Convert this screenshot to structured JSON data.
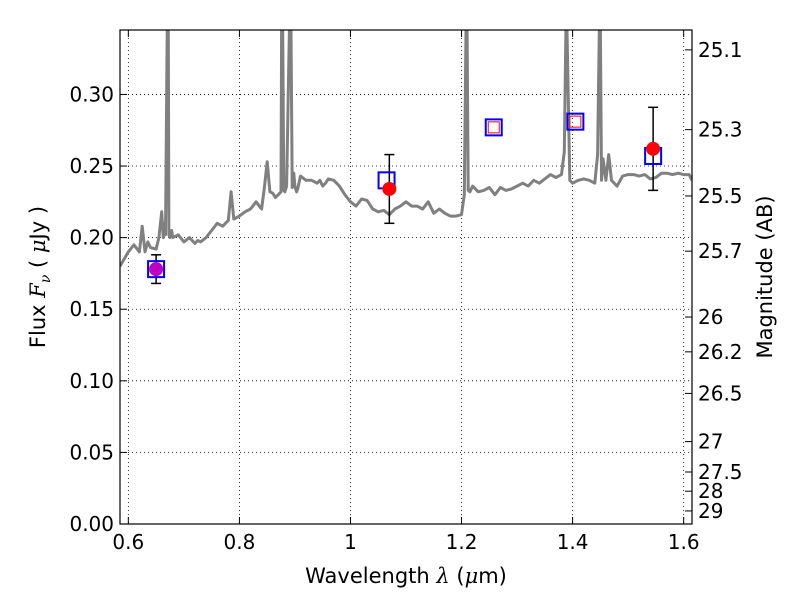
{
  "chart_data": {
    "type": "scatter",
    "xlabel": {
      "prefix": "Wavelength  ",
      "symbol": "λ",
      "unit_open": " (",
      "unit_mu": "μ",
      "unit_rest": "m)"
    },
    "ylabel": {
      "prefix": "Flux  ",
      "symbol": "F",
      "subscript": "ν",
      "unit_open": "  ( ",
      "unit_mu": "μ",
      "unit_rest": "Jy )"
    },
    "y2label": "Magnitude (AB)",
    "xlim": [
      0.585,
      1.615
    ],
    "ylim": [
      0.0,
      0.345
    ],
    "grid": true,
    "x_ticks": [
      {
        "value": 0.6,
        "label": "0.6"
      },
      {
        "value": 0.8,
        "label": "0.8"
      },
      {
        "value": 1.0,
        "label": "1"
      },
      {
        "value": 1.2,
        "label": "1.2"
      },
      {
        "value": 1.4,
        "label": "1.4"
      },
      {
        "value": 1.6,
        "label": "1.6"
      }
    ],
    "y_ticks": [
      {
        "value": 0.0,
        "label": "0.00"
      },
      {
        "value": 0.05,
        "label": "0.05"
      },
      {
        "value": 0.1,
        "label": "0.10"
      },
      {
        "value": 0.15,
        "label": "0.15"
      },
      {
        "value": 0.2,
        "label": "0.20"
      },
      {
        "value": 0.25,
        "label": "0.25"
      },
      {
        "value": 0.3,
        "label": "0.30"
      }
    ],
    "magnitude_ticks": [
      {
        "value": 25.1,
        "label": "25.1"
      },
      {
        "value": 25.3,
        "label": "25.3"
      },
      {
        "value": 25.5,
        "label": "25.5"
      },
      {
        "value": 25.7,
        "label": "25.7"
      },
      {
        "value": 26.0,
        "label": "26"
      },
      {
        "value": 26.2,
        "label": "26.2"
      },
      {
        "value": 26.5,
        "label": "26.5"
      },
      {
        "value": 27.0,
        "label": "27"
      },
      {
        "value": 27.5,
        "label": "27.5"
      },
      {
        "value": 28.0,
        "label": "28"
      },
      {
        "value": 29.0,
        "label": "29"
      }
    ],
    "series": [
      {
        "type": "line",
        "color": "#808080",
        "x": [
          0.585,
          0.6,
          0.61,
          0.62,
          0.625,
          0.63,
          0.635,
          0.64,
          0.65,
          0.655,
          0.66,
          0.663,
          0.665,
          0.667,
          0.67,
          0.672,
          0.673,
          0.675,
          0.678,
          0.68,
          0.69,
          0.7,
          0.71,
          0.72,
          0.725,
          0.73,
          0.74,
          0.75,
          0.76,
          0.77,
          0.78,
          0.785,
          0.79,
          0.795,
          0.8,
          0.81,
          0.82,
          0.83,
          0.84,
          0.845,
          0.85,
          0.855,
          0.86,
          0.865,
          0.87,
          0.875,
          0.876,
          0.878,
          0.88,
          0.882,
          0.885,
          0.89,
          0.893,
          0.895,
          0.898,
          0.9,
          0.903,
          0.905,
          0.91,
          0.92,
          0.93,
          0.94,
          0.945,
          0.95,
          0.955,
          0.96,
          0.97,
          0.98,
          0.99,
          1.0,
          1.01,
          1.02,
          1.03,
          1.04,
          1.05,
          1.06,
          1.07,
          1.08,
          1.09,
          1.1,
          1.11,
          1.12,
          1.13,
          1.14,
          1.15,
          1.16,
          1.17,
          1.18,
          1.19,
          1.2,
          1.205,
          1.208,
          1.21,
          1.212,
          1.215,
          1.22,
          1.23,
          1.24,
          1.25,
          1.26,
          1.27,
          1.28,
          1.29,
          1.3,
          1.31,
          1.32,
          1.33,
          1.34,
          1.35,
          1.36,
          1.37,
          1.38,
          1.385,
          1.388,
          1.39,
          1.395,
          1.4,
          1.41,
          1.42,
          1.43,
          1.44,
          1.445,
          1.448,
          1.45,
          1.452,
          1.455,
          1.46,
          1.465,
          1.47,
          1.48,
          1.49,
          1.5,
          1.51,
          1.52,
          1.53,
          1.54,
          1.55,
          1.56,
          1.57,
          1.58,
          1.59,
          1.6,
          1.61,
          1.615
        ],
        "y": [
          0.18,
          0.19,
          0.195,
          0.19,
          0.208,
          0.19,
          0.197,
          0.193,
          0.192,
          0.2,
          0.218,
          0.2,
          0.21,
          0.202,
          0.345,
          0.345,
          0.202,
          0.2,
          0.205,
          0.2,
          0.202,
          0.197,
          0.2,
          0.196,
          0.198,
          0.197,
          0.2,
          0.205,
          0.21,
          0.208,
          0.212,
          0.232,
          0.213,
          0.214,
          0.215,
          0.218,
          0.22,
          0.225,
          0.22,
          0.235,
          0.253,
          0.232,
          0.231,
          0.228,
          0.23,
          0.232,
          0.345,
          0.345,
          0.233,
          0.232,
          0.236,
          0.345,
          0.345,
          0.235,
          0.245,
          0.236,
          0.232,
          0.234,
          0.243,
          0.24,
          0.24,
          0.238,
          0.24,
          0.236,
          0.238,
          0.241,
          0.24,
          0.236,
          0.23,
          0.225,
          0.222,
          0.227,
          0.226,
          0.22,
          0.218,
          0.219,
          0.216,
          0.22,
          0.222,
          0.225,
          0.222,
          0.222,
          0.22,
          0.225,
          0.217,
          0.22,
          0.217,
          0.215,
          0.215,
          0.216,
          0.23,
          0.345,
          0.345,
          0.233,
          0.232,
          0.236,
          0.232,
          0.233,
          0.235,
          0.23,
          0.235,
          0.233,
          0.234,
          0.236,
          0.238,
          0.236,
          0.24,
          0.238,
          0.241,
          0.244,
          0.242,
          0.244,
          0.26,
          0.345,
          0.345,
          0.24,
          0.238,
          0.24,
          0.241,
          0.24,
          0.238,
          0.258,
          0.345,
          0.345,
          0.24,
          0.255,
          0.24,
          0.258,
          0.24,
          0.236,
          0.243,
          0.244,
          0.244,
          0.243,
          0.244,
          0.241,
          0.242,
          0.245,
          0.245,
          0.244,
          0.245,
          0.244,
          0.244,
          0.24
        ]
      },
      {
        "type": "errorbar",
        "marker": "circle",
        "color": "#ff0000",
        "points": [
          {
            "x": 0.65,
            "y": 0.178,
            "yerr": 0.01
          },
          {
            "x": 1.07,
            "y": 0.234,
            "yerr": 0.024
          },
          {
            "x": 1.545,
            "y": 0.262,
            "yerr": 0.029
          }
        ]
      },
      {
        "type": "scatter",
        "marker": "square",
        "color": "#0000ff",
        "points": [
          {
            "x": 0.65,
            "y": 0.178
          },
          {
            "x": 1.065,
            "y": 0.24
          },
          {
            "x": 1.258,
            "y": 0.277
          },
          {
            "x": 1.405,
            "y": 0.281
          },
          {
            "x": 1.545,
            "y": 0.257
          }
        ]
      },
      {
        "type": "scatter",
        "marker": "small-square",
        "color": "#ff0000",
        "points": [
          {
            "x": 1.258,
            "y": 0.277
          },
          {
            "x": 1.405,
            "y": 0.281
          }
        ]
      }
    ],
    "markers": {
      "circle_fill": "#ff0000",
      "square_stroke": "#0000ff",
      "overlap_fill": "#c000c0",
      "errorbar_color": "#000000",
      "line_color": "#808080"
    }
  }
}
